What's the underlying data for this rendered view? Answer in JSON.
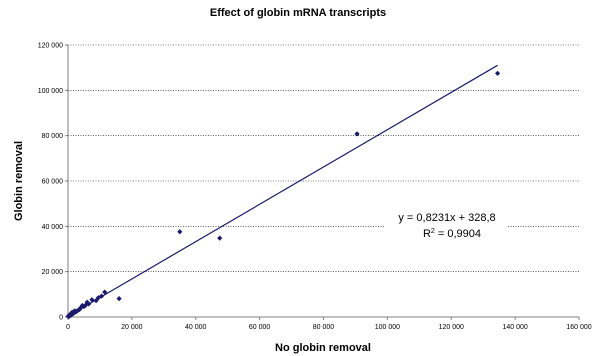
{
  "chart_data": {
    "type": "scatter",
    "title": "Effect of globin mRNA transcripts",
    "xlabel": "No globin removal",
    "ylabel": "Globin removal",
    "xlim": [
      0,
      160000
    ],
    "ylim": [
      0,
      120000
    ],
    "x_ticks": [
      0,
      20000,
      40000,
      60000,
      80000,
      100000,
      120000,
      140000,
      160000
    ],
    "y_ticks": [
      0,
      20000,
      40000,
      60000,
      80000,
      100000,
      120000
    ],
    "x_tick_labels": [
      "0",
      "20 000",
      "40 000",
      "60 000",
      "80 000",
      "100 000",
      "120 000",
      "140 000",
      "160 000"
    ],
    "y_tick_labels": [
      "0",
      "20 000",
      "40 000",
      "60 000",
      "80 000",
      "100 000",
      "120 000"
    ],
    "grid": "horizontal-dotted",
    "legend": "none",
    "point_color": "#1a1a6e",
    "line_color": "#1a1a6e",
    "points": [
      {
        "x": 134500,
        "y": 107500
      },
      {
        "x": 90500,
        "y": 80800
      },
      {
        "x": 47500,
        "y": 34800
      },
      {
        "x": 35000,
        "y": 37600
      },
      {
        "x": 16000,
        "y": 8100
      },
      {
        "x": 11500,
        "y": 11000
      },
      {
        "x": 10500,
        "y": 9200
      },
      {
        "x": 9500,
        "y": 8500
      },
      {
        "x": 8800,
        "y": 7200
      },
      {
        "x": 7500,
        "y": 7600
      },
      {
        "x": 6500,
        "y": 5800
      },
      {
        "x": 6000,
        "y": 6500
      },
      {
        "x": 5500,
        "y": 5200
      },
      {
        "x": 5000,
        "y": 4600
      },
      {
        "x": 4500,
        "y": 5100
      },
      {
        "x": 4000,
        "y": 4100
      },
      {
        "x": 3600,
        "y": 3300
      },
      {
        "x": 3200,
        "y": 3000
      },
      {
        "x": 2800,
        "y": 2600
      },
      {
        "x": 2400,
        "y": 2200
      },
      {
        "x": 2100,
        "y": 2700
      },
      {
        "x": 1800,
        "y": 1700
      },
      {
        "x": 1500,
        "y": 1400
      },
      {
        "x": 1300,
        "y": 2100
      },
      {
        "x": 1100,
        "y": 1000
      },
      {
        "x": 900,
        "y": 800
      },
      {
        "x": 700,
        "y": 1200
      },
      {
        "x": 500,
        "y": 600
      },
      {
        "x": 400,
        "y": 300
      },
      {
        "x": 250,
        "y": 500
      },
      {
        "x": 150,
        "y": 150
      },
      {
        "x": 80,
        "y": 400
      }
    ],
    "trendline": {
      "slope": 0.8231,
      "intercept": 328.8,
      "x_range": [
        0,
        134500
      ],
      "equation_text": "y = 0,8231x + 328,8",
      "r2_label": "R",
      "r2_superscript": "2",
      "r2_value": " = 0,9904"
    }
  }
}
